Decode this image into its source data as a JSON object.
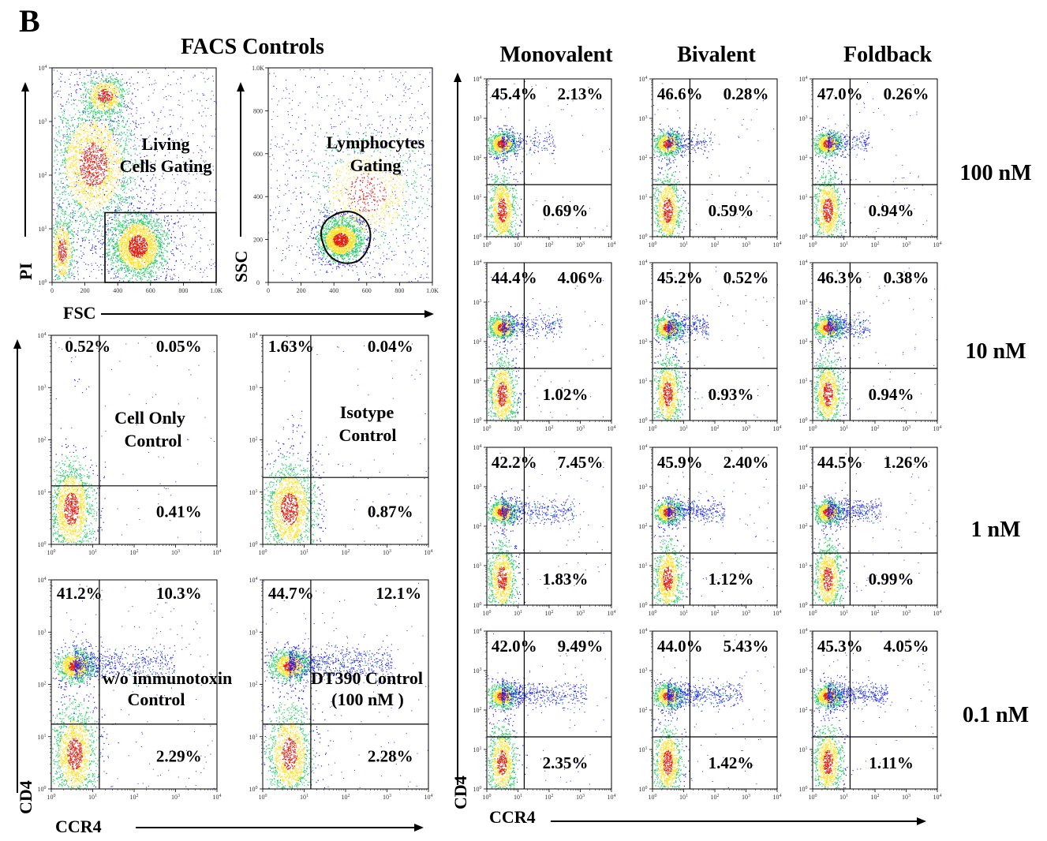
{
  "figure": {
    "panel_letter": "B",
    "controls_title": "FACS Controls",
    "column_headers": [
      "Monovalent",
      "Bivalent",
      "Foldback"
    ],
    "row_labels": [
      "100 nM",
      "10 nM",
      "1 nM",
      "0.1 nM"
    ]
  },
  "colors": {
    "low": "#1a1aff",
    "mid": "#20d060",
    "high": "#ffe020",
    "peak": "#e02010",
    "frame": "#000000"
  },
  "chart_data": [
    {
      "type": "scatter",
      "id": "living-cells",
      "xlabel": "FSC",
      "ylabel": "PI",
      "y_scale": "log",
      "x_ticks": [
        "0",
        "200",
        "400",
        "600",
        "800",
        "1.0K"
      ],
      "y_ticks": [
        "10^0",
        "10^1",
        "10^2",
        "10^3",
        "10^4"
      ],
      "gate_label": [
        "Living",
        "Cells Gating"
      ],
      "gate": {
        "shape": "rectangle",
        "x": [
          330,
          1024
        ],
        "y": [
          1,
          20
        ]
      }
    },
    {
      "type": "scatter",
      "id": "lymphocytes",
      "ylabel": "SSC",
      "x_ticks": [
        "0",
        "200",
        "400",
        "600",
        "800",
        "1.0K"
      ],
      "y_ticks": [
        "0",
        "200",
        "400",
        "600",
        "800",
        "1.0K"
      ],
      "gate_label": [
        "Lymphocytes",
        "Gating"
      ],
      "gate": {
        "shape": "polygon"
      }
    },
    {
      "type": "scatter",
      "id": "cell-only",
      "xlabel": "CCR4",
      "ylabel": "CD4",
      "scale": "log",
      "quadrants": {
        "upper_left": "0.52%",
        "upper_right": "0.05%",
        "lower_right": "0.41%"
      },
      "annotation": [
        "Cell Only",
        "Control"
      ]
    },
    {
      "type": "scatter",
      "id": "isotype",
      "scale": "log",
      "quadrants": {
        "upper_left": "1.63%",
        "upper_right": "0.04%",
        "lower_right": "0.87%"
      },
      "annotation": [
        "Isotype",
        "Control"
      ]
    },
    {
      "type": "scatter",
      "id": "no-immunotoxin",
      "scale": "log",
      "quadrants": {
        "upper_left": "41.2%",
        "upper_right": "10.3%",
        "lower_right": "2.29%"
      },
      "annotation": [
        "w/o immunotoxin",
        "Control"
      ]
    },
    {
      "type": "scatter",
      "id": "dt390",
      "scale": "log",
      "quadrants": {
        "upper_left": "44.7%",
        "upper_right": "12.1%",
        "lower_right": "2.28%"
      },
      "annotation": [
        "DT390 Control",
        "(100 nM )"
      ]
    },
    {
      "type": "scatter",
      "id": "treatment-grid",
      "xlabel": "CCR4",
      "ylabel": "CD4",
      "scale": "log",
      "log_ticks": [
        "10^0",
        "10^1",
        "10^2",
        "10^3",
        "10^4"
      ],
      "columns": [
        "Monovalent",
        "Bivalent",
        "Foldback"
      ],
      "rows": [
        "100 nM",
        "10 nM",
        "1 nM",
        "0.1 nM"
      ],
      "quadrants": [
        [
          {
            "upper_left": "45.4%",
            "upper_right": "2.13%",
            "lower_right": "0.69%"
          },
          {
            "upper_left": "46.6%",
            "upper_right": "0.28%",
            "lower_right": "0.59%"
          },
          {
            "upper_left": "47.0%",
            "upper_right": "0.26%",
            "lower_right": "0.94%"
          }
        ],
        [
          {
            "upper_left": "44.4%",
            "upper_right": "4.06%",
            "lower_right": "1.02%"
          },
          {
            "upper_left": "45.2%",
            "upper_right": "0.52%",
            "lower_right": "0.93%"
          },
          {
            "upper_left": "46.3%",
            "upper_right": "0.38%",
            "lower_right": "0.94%"
          }
        ],
        [
          {
            "upper_left": "42.2%",
            "upper_right": "7.45%",
            "lower_right": "1.83%"
          },
          {
            "upper_left": "45.9%",
            "upper_right": "2.40%",
            "lower_right": "1.12%"
          },
          {
            "upper_left": "44.5%",
            "upper_right": "1.26%",
            "lower_right": "0.99%"
          }
        ],
        [
          {
            "upper_left": "42.0%",
            "upper_right": "9.49%",
            "lower_right": "2.35%"
          },
          {
            "upper_left": "44.0%",
            "upper_right": "5.43%",
            "lower_right": "1.42%"
          },
          {
            "upper_left": "45.3%",
            "upper_right": "4.05%",
            "lower_right": "1.11%"
          }
        ]
      ]
    }
  ]
}
